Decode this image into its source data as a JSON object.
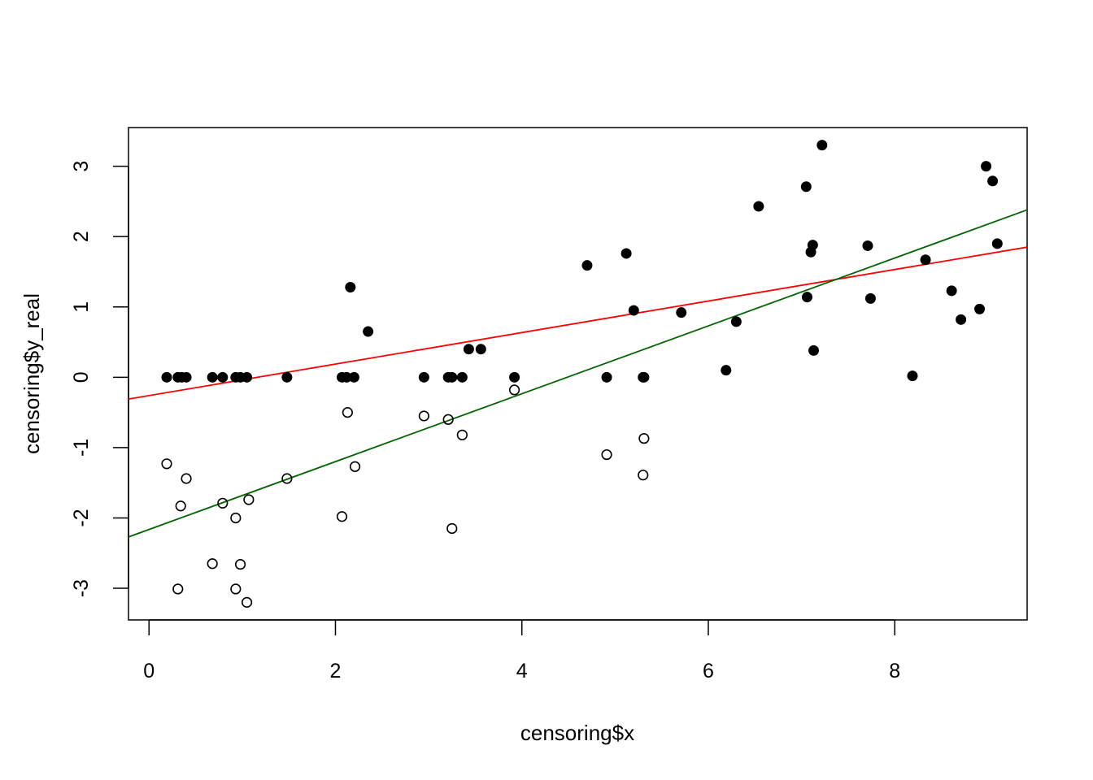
{
  "chart_data": {
    "type": "scatter",
    "xlabel": "censoring$x",
    "ylabel": "censoring$y_real",
    "xlim": [
      -0.22,
      9.42
    ],
    "ylim": [
      -3.45,
      3.55
    ],
    "x_ticks": [
      0,
      2,
      4,
      6,
      8
    ],
    "y_ticks": [
      -3,
      -2,
      -1,
      0,
      1,
      2,
      3
    ],
    "x_tick_labels": [
      "0",
      "2",
      "4",
      "6",
      "8"
    ],
    "y_tick_labels": [
      "-3",
      "-2",
      "-1",
      "0",
      "1",
      "2",
      "3"
    ],
    "grid": false,
    "legend": "none",
    "series": [
      {
        "marker": "filled-circle",
        "color": "#000000",
        "points": [
          [
            0.19,
            0.0
          ],
          [
            0.31,
            0.0
          ],
          [
            0.35,
            0.0
          ],
          [
            0.4,
            0.0
          ],
          [
            0.68,
            0.0
          ],
          [
            0.79,
            0.0
          ],
          [
            0.93,
            0.0
          ],
          [
            0.98,
            0.0
          ],
          [
            1.05,
            0.0
          ],
          [
            1.48,
            0.0
          ],
          [
            2.07,
            0.0
          ],
          [
            2.12,
            0.0
          ],
          [
            2.2,
            0.0
          ],
          [
            2.16,
            1.28
          ],
          [
            2.35,
            0.65
          ],
          [
            2.95,
            0.0
          ],
          [
            3.21,
            0.0
          ],
          [
            3.25,
            0.0
          ],
          [
            3.36,
            0.0
          ],
          [
            3.43,
            0.4
          ],
          [
            3.56,
            0.4
          ],
          [
            3.92,
            0.0
          ],
          [
            4.7,
            1.59
          ],
          [
            4.91,
            0.0
          ],
          [
            5.12,
            1.76
          ],
          [
            5.2,
            0.95
          ],
          [
            5.3,
            0.0
          ],
          [
            5.31,
            0.0
          ],
          [
            5.71,
            0.92
          ],
          [
            6.19,
            0.1
          ],
          [
            6.3,
            0.79
          ],
          [
            6.54,
            2.43
          ],
          [
            7.05,
            2.71
          ],
          [
            7.06,
            1.14
          ],
          [
            7.1,
            1.78
          ],
          [
            7.12,
            1.88
          ],
          [
            7.13,
            0.38
          ],
          [
            7.22,
            3.3
          ],
          [
            7.71,
            1.87
          ],
          [
            7.74,
            1.12
          ],
          [
            8.19,
            0.02
          ],
          [
            8.33,
            1.67
          ],
          [
            8.61,
            1.23
          ],
          [
            8.71,
            0.82
          ],
          [
            8.91,
            0.97
          ],
          [
            8.98,
            3.0
          ],
          [
            9.05,
            2.79
          ],
          [
            9.1,
            1.9
          ]
        ]
      },
      {
        "marker": "open-circle",
        "color": "#000000",
        "points": [
          [
            0.19,
            -1.23
          ],
          [
            0.31,
            -3.01
          ],
          [
            0.34,
            -1.83
          ],
          [
            0.4,
            -1.44
          ],
          [
            0.68,
            -2.65
          ],
          [
            0.79,
            -1.79
          ],
          [
            0.93,
            -2.0
          ],
          [
            0.93,
            -3.01
          ],
          [
            0.98,
            -2.66
          ],
          [
            1.05,
            -3.2
          ],
          [
            1.07,
            -1.74
          ],
          [
            1.48,
            -1.44
          ],
          [
            2.07,
            -1.98
          ],
          [
            2.13,
            -0.5
          ],
          [
            2.21,
            -1.27
          ],
          [
            2.95,
            -0.55
          ],
          [
            3.21,
            -0.6
          ],
          [
            3.25,
            -2.15
          ],
          [
            3.36,
            -0.82
          ],
          [
            3.92,
            -0.18
          ],
          [
            4.91,
            -1.1
          ],
          [
            5.3,
            -1.39
          ],
          [
            5.31,
            -0.87
          ]
        ]
      }
    ],
    "lines": [
      {
        "color": "#ff0000",
        "x": [
          -0.22,
          9.42
        ],
        "y": [
          -0.31,
          1.85
        ]
      },
      {
        "color": "#006400",
        "x": [
          -0.22,
          9.42
        ],
        "y": [
          -2.27,
          2.38
        ]
      }
    ]
  }
}
